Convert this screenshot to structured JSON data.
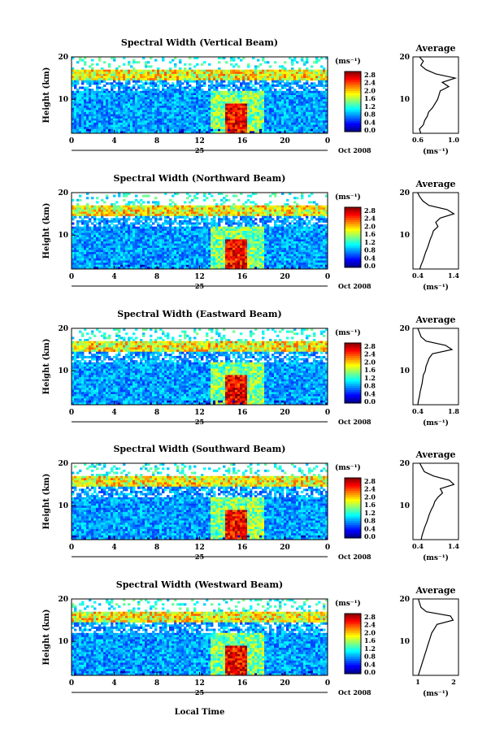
{
  "figure": {
    "x_axis_label": "Local Time",
    "units_label": "(ms⁻¹)",
    "date_label": "Oct 2008",
    "day_label": "25",
    "y_axis_label": "Height (km)",
    "average_title": "Average",
    "colorbar_ticks": [
      "2.8",
      "2.4",
      "2.0",
      "1.6",
      "1.2",
      "0.8",
      "0.4",
      "0.0"
    ]
  },
  "chart_data": [
    {
      "type": "heatmap",
      "title": "Spectral Width (Vertical Beam)",
      "xlabel": "",
      "ylabel": "Height (km)",
      "xlim": [
        0,
        24
      ],
      "ylim": [
        2,
        20
      ],
      "x_ticks": [
        "0",
        "4",
        "8",
        "12",
        "16",
        "20",
        "0"
      ],
      "y_ticks": [
        "20",
        "10"
      ],
      "colorbar": {
        "label": "(ms⁻¹)",
        "range": [
          0.0,
          2.8
        ]
      },
      "convective_core_time_h": 15.5,
      "average_profile": {
        "title": "Average",
        "xlabel": "(ms⁻¹)",
        "xticks": [
          "0.6",
          "1.0"
        ],
        "xlim": [
          0.5,
          1.2
        ],
        "yticks": [
          "20",
          "10"
        ],
        "height_km": [
          2,
          3,
          4,
          5,
          6,
          7,
          8,
          9,
          10,
          11,
          12,
          13,
          14,
          15,
          16,
          17,
          18,
          19,
          20
        ],
        "values": [
          0.62,
          0.6,
          0.66,
          0.68,
          0.72,
          0.74,
          0.8,
          0.84,
          0.88,
          0.9,
          0.92,
          1.05,
          0.95,
          1.15,
          0.85,
          0.7,
          0.62,
          0.66,
          0.6
        ]
      }
    },
    {
      "type": "heatmap",
      "title": "Spectral Width (Northward Beam)",
      "xlabel": "",
      "ylabel": "Height (km)",
      "xlim": [
        0,
        24
      ],
      "ylim": [
        2,
        20
      ],
      "x_ticks": [
        "0",
        "4",
        "8",
        "12",
        "16",
        "20",
        "0"
      ],
      "y_ticks": [
        "20",
        "10"
      ],
      "colorbar": {
        "label": "(ms⁻¹)",
        "range": [
          0.0,
          2.8
        ]
      },
      "convective_core_time_h": 15.5,
      "average_profile": {
        "title": "Average",
        "xlabel": "(ms⁻¹)",
        "xticks": [
          "0.4",
          "1.4"
        ],
        "xlim": [
          0.4,
          1.4
        ],
        "yticks": [
          "20",
          "10"
        ],
        "height_km": [
          2,
          3,
          4,
          5,
          6,
          7,
          8,
          9,
          10,
          11,
          12,
          13,
          14,
          15,
          16,
          17,
          18,
          19,
          20
        ],
        "values": [
          0.55,
          0.58,
          0.62,
          0.65,
          0.68,
          0.72,
          0.75,
          0.78,
          0.82,
          0.85,
          0.95,
          0.9,
          1.0,
          1.3,
          1.15,
          0.75,
          0.62,
          0.55,
          0.5
        ]
      }
    },
    {
      "type": "heatmap",
      "title": "Spectral Width (Eastward Beam)",
      "xlabel": "",
      "ylabel": "Height (km)",
      "xlim": [
        0,
        24
      ],
      "ylim": [
        2,
        20
      ],
      "x_ticks": [
        "0",
        "4",
        "8",
        "12",
        "16",
        "20",
        "0"
      ],
      "y_ticks": [
        "20",
        "10"
      ],
      "colorbar": {
        "label": "(ms⁻¹)",
        "range": [
          0.0,
          2.8
        ]
      },
      "convective_core_time_h": 15.5,
      "average_profile": {
        "title": "Average",
        "xlabel": "(ms⁻¹)",
        "xticks": [
          "0.4",
          "1.8"
        ],
        "xlim": [
          0.4,
          1.8
        ],
        "yticks": [
          "20",
          "10"
        ],
        "height_km": [
          2,
          3,
          4,
          5,
          6,
          7,
          8,
          9,
          10,
          11,
          12,
          13,
          14,
          15,
          16,
          17,
          18,
          19,
          20
        ],
        "values": [
          0.55,
          0.57,
          0.6,
          0.62,
          0.65,
          0.68,
          0.7,
          0.72,
          0.78,
          0.8,
          0.85,
          0.9,
          1.0,
          1.6,
          1.4,
          0.8,
          0.65,
          0.6,
          0.55
        ]
      }
    },
    {
      "type": "heatmap",
      "title": "Spectral Width (Southward Beam)",
      "xlabel": "",
      "ylabel": "Height (km)",
      "xlim": [
        0,
        24
      ],
      "ylim": [
        2,
        20
      ],
      "x_ticks": [
        "0",
        "4",
        "8",
        "12",
        "16",
        "20",
        "0"
      ],
      "y_ticks": [
        "20",
        "10"
      ],
      "colorbar": {
        "label": "(ms⁻¹)",
        "range": [
          0.0,
          2.8
        ]
      },
      "convective_core_time_h": 15.5,
      "average_profile": {
        "title": "Average",
        "xlabel": "(ms⁻¹)",
        "xticks": [
          "0.4",
          "1.4"
        ],
        "xlim": [
          0.4,
          1.4
        ],
        "yticks": [
          "20",
          "10"
        ],
        "height_km": [
          2,
          3,
          4,
          5,
          6,
          7,
          8,
          9,
          10,
          11,
          12,
          13,
          14,
          15,
          16,
          17,
          18,
          19,
          20
        ],
        "values": [
          0.58,
          0.6,
          0.63,
          0.66,
          0.7,
          0.73,
          0.76,
          0.8,
          0.85,
          0.88,
          0.95,
          1.05,
          1.0,
          1.3,
          1.2,
          0.85,
          0.65,
          0.6,
          0.55
        ]
      }
    },
    {
      "type": "heatmap",
      "title": "Spectral Width (Westward Beam)",
      "xlabel": "Local Time",
      "ylabel": "Height (km)",
      "xlim": [
        0,
        24
      ],
      "ylim": [
        2,
        20
      ],
      "x_ticks": [
        "0",
        "4",
        "8",
        "12",
        "16",
        "20",
        "0"
      ],
      "y_ticks": [
        "20",
        "10"
      ],
      "colorbar": {
        "label": "(ms⁻¹)",
        "range": [
          0.0,
          2.8
        ]
      },
      "convective_core_time_h": 15.5,
      "average_profile": {
        "title": "Average",
        "xlabel": "(ms⁻¹)",
        "xticks": [
          "1",
          "2"
        ],
        "xlim": [
          0.5,
          2.2
        ],
        "yticks": [
          "20",
          "10"
        ],
        "height_km": [
          2,
          3,
          4,
          5,
          6,
          7,
          8,
          9,
          10,
          11,
          12,
          13,
          14,
          15,
          16,
          17,
          18,
          19,
          20
        ],
        "values": [
          0.7,
          0.75,
          0.8,
          0.85,
          0.9,
          0.95,
          1.0,
          1.05,
          1.1,
          1.15,
          1.2,
          1.3,
          1.4,
          2.0,
          1.9,
          1.0,
          0.8,
          0.75,
          0.7
        ]
      }
    }
  ]
}
